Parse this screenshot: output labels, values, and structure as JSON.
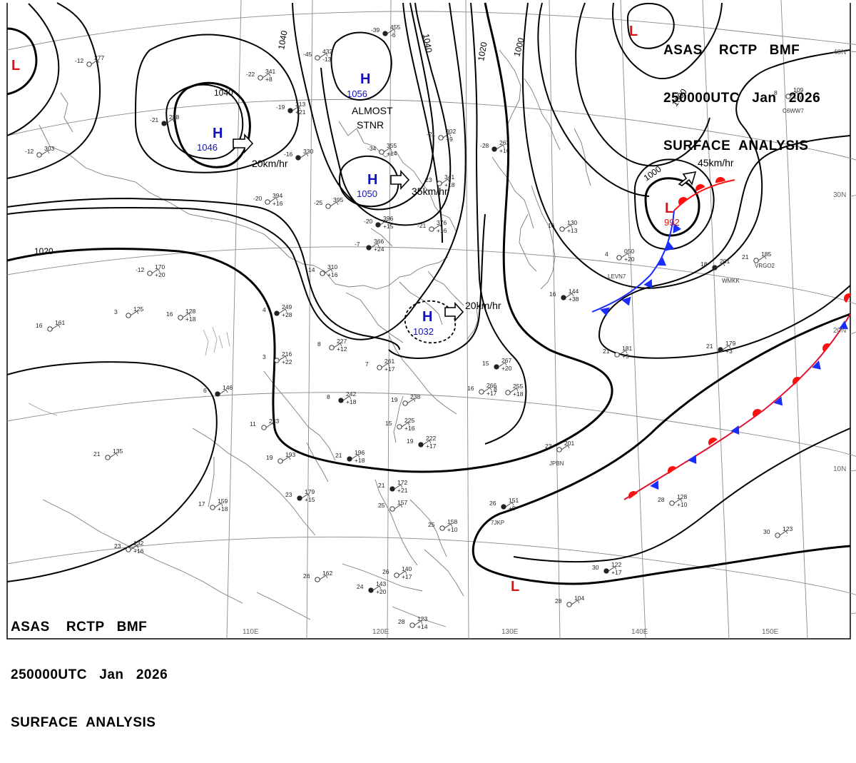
{
  "header": {
    "line1": "ASAS    RCTP   BMF",
    "line2": "250000UTC   Jan   2026",
    "line3": "SURFACE  ANALYSIS"
  },
  "colors": {
    "high": "#1010c0",
    "low": "#e01010",
    "cold_front": "#1a2cff",
    "warm_front": "#ff1010",
    "isobar": "#000000",
    "grid": "#8a8a8a",
    "coast": "#7a7a7a"
  },
  "pressure_centers": [
    {
      "type": "H",
      "value": "1056"
    },
    {
      "type": "H",
      "value": "1046"
    },
    {
      "type": "H",
      "value": "1050"
    },
    {
      "type": "H",
      "value": "1032"
    },
    {
      "type": "L",
      "value": "992"
    },
    {
      "type": "L",
      "value": ""
    },
    {
      "type": "L",
      "value": ""
    },
    {
      "type": "L",
      "value": ""
    }
  ],
  "isobar_labels": [
    "1040",
    "1040",
    "1040",
    "1020",
    "1020",
    "1000",
    "1000",
    "1000"
  ],
  "motion_labels": [
    "20km/hr",
    "35km/hr",
    "20km/hr",
    "45km/hr"
  ],
  "annotation": [
    "ALMOST",
    "STNR"
  ],
  "longitudes": [
    "110E",
    "120E",
    "130E",
    "140E",
    "150E"
  ],
  "latitudes": [
    "40N",
    "30N",
    "20N",
    "10N"
  ],
  "station_ids": [
    "C6WW7",
    "VRGO2",
    "WMKK",
    "LEVN7",
    "JPBN",
    "7JKP"
  ],
  "stations": [
    {
      "t": "-39",
      "p": "455",
      "d": "-6"
    },
    {
      "t": "-45",
      "p": "432",
      "d": "-13"
    },
    {
      "t": "-22",
      "p": "341",
      "d": "+8"
    },
    {
      "t": "-19",
      "p": "313",
      "d": "+21"
    },
    {
      "t": "-21",
      "p": "302",
      "d": "+9"
    },
    {
      "t": "-34",
      "p": "355",
      "d": "+14"
    },
    {
      "t": "-16",
      "p": "330",
      "d": ""
    },
    {
      "t": "-20",
      "p": "394",
      "d": "+16"
    },
    {
      "t": "-25",
      "p": "395",
      "d": ""
    },
    {
      "t": "-20",
      "p": "396",
      "d": "+15"
    },
    {
      "t": "-21",
      "p": "376",
      "d": "+16"
    },
    {
      "t": "23",
      "p": "341",
      "d": "+18"
    },
    {
      "t": "-28",
      "p": "263",
      "d": "+16"
    },
    {
      "t": "-12",
      "p": "170",
      "d": "+20"
    },
    {
      "t": "14",
      "p": "310",
      "d": "+16"
    },
    {
      "t": "-7",
      "p": "366",
      "d": "+24"
    },
    {
      "t": "16",
      "p": "128",
      "d": "+18"
    },
    {
      "t": "3",
      "p": "125",
      "d": ""
    },
    {
      "t": "4",
      "p": "249",
      "d": "+28"
    },
    {
      "t": "16",
      "p": "161",
      "d": ""
    },
    {
      "t": "3",
      "p": "216",
      "d": "+22"
    },
    {
      "t": "6",
      "p": "146",
      "d": ""
    },
    {
      "t": "8",
      "p": "227",
      "d": "+12"
    },
    {
      "t": "7",
      "p": "261",
      "d": "+17"
    },
    {
      "t": "8",
      "p": "242",
      "d": "+18"
    },
    {
      "t": "19",
      "p": "238",
      "d": ""
    },
    {
      "t": "15",
      "p": "225",
      "d": "+16"
    },
    {
      "t": "19",
      "p": "222",
      "d": "+17"
    },
    {
      "t": "16",
      "p": "266",
      "d": "+17"
    },
    {
      "t": "8",
      "p": "255",
      "d": "+18"
    },
    {
      "t": "15",
      "p": "267",
      "d": "+20"
    },
    {
      "t": "11",
      "p": "233",
      "d": ""
    },
    {
      "t": "19",
      "p": "193",
      "d": ""
    },
    {
      "t": "21",
      "p": "196",
      "d": "+18"
    },
    {
      "t": "21",
      "p": "135",
      "d": ""
    },
    {
      "t": "17",
      "p": "159",
      "d": "+18"
    },
    {
      "t": "23",
      "p": "179",
      "d": "+15"
    },
    {
      "t": "23",
      "p": "132",
      "d": "+16"
    },
    {
      "t": "26",
      "p": "162",
      "d": ""
    },
    {
      "t": "24",
      "p": "143",
      "d": "+20"
    },
    {
      "t": "26",
      "p": "140",
      "d": "+17"
    },
    {
      "t": "28",
      "p": "123",
      "d": "+14"
    },
    {
      "t": "21",
      "p": "172",
      "d": "+21"
    },
    {
      "t": "25",
      "p": "157",
      "d": ""
    },
    {
      "t": "25",
      "p": "158",
      "d": "+10"
    },
    {
      "t": "26",
      "p": "151",
      "d": "+9"
    },
    {
      "t": "23",
      "p": "201",
      "d": ""
    },
    {
      "t": "21",
      "p": "181",
      "d": "+5"
    },
    {
      "t": "21",
      "p": "179",
      "d": "+3"
    },
    {
      "t": "28",
      "p": "128",
      "d": "+10"
    },
    {
      "t": "30",
      "p": "123",
      "d": ""
    },
    {
      "t": "30",
      "p": "122",
      "d": "+17"
    },
    {
      "t": "28",
      "p": "104",
      "d": ""
    },
    {
      "t": "4",
      "p": "050",
      "d": "+20"
    },
    {
      "t": "18",
      "p": "201",
      "d": ""
    },
    {
      "t": "21",
      "p": "185",
      "d": ""
    },
    {
      "t": "8",
      "p": "109",
      "d": "+10"
    },
    {
      "t": "16",
      "p": "144",
      "d": "+38"
    },
    {
      "t": "16",
      "p": "130",
      "d": "+13"
    },
    {
      "t": "-12",
      "p": "277",
      "d": ""
    },
    {
      "t": "-21",
      "p": "288",
      "d": ""
    },
    {
      "t": "-12",
      "p": "303",
      "d": ""
    }
  ]
}
